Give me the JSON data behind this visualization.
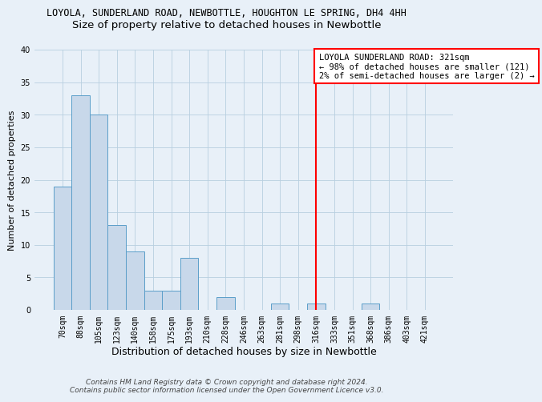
{
  "title_line1": "LOYOLA, SUNDERLAND ROAD, NEWBOTTLE, HOUGHTON LE SPRING, DH4 4HH",
  "title_line2": "Size of property relative to detached houses in Newbottle",
  "xlabel": "Distribution of detached houses by size in Newbottle",
  "ylabel": "Number of detached properties",
  "categories": [
    "70sqm",
    "88sqm",
    "105sqm",
    "123sqm",
    "140sqm",
    "158sqm",
    "175sqm",
    "193sqm",
    "210sqm",
    "228sqm",
    "246sqm",
    "263sqm",
    "281sqm",
    "298sqm",
    "316sqm",
    "333sqm",
    "351sqm",
    "368sqm",
    "386sqm",
    "403sqm",
    "421sqm"
  ],
  "values": [
    19,
    33,
    30,
    13,
    9,
    3,
    3,
    8,
    0,
    2,
    0,
    0,
    1,
    0,
    1,
    0,
    0,
    1,
    0,
    0,
    0
  ],
  "bar_color": "#c8d8ea",
  "bar_edge_color": "#5b9ec9",
  "grid_color": "#b8cfe0",
  "bg_color": "#e8f0f8",
  "vline_x_index": 14,
  "vline_color": "red",
  "annotation_text": "LOYOLA SUNDERLAND ROAD: 321sqm\n← 98% of detached houses are smaller (121)\n2% of semi-detached houses are larger (2) →",
  "annotation_box_color": "white",
  "annotation_border_color": "red",
  "ylim": [
    0,
    40
  ],
  "yticks": [
    0,
    5,
    10,
    15,
    20,
    25,
    30,
    35,
    40
  ],
  "footer_line1": "Contains HM Land Registry data © Crown copyright and database right 2024.",
  "footer_line2": "Contains public sector information licensed under the Open Government Licence v3.0.",
  "title1_fontsize": 8.5,
  "title2_fontsize": 9.5,
  "xlabel_fontsize": 9,
  "ylabel_fontsize": 8,
  "tick_fontsize": 7,
  "annotation_fontsize": 7.5,
  "footer_fontsize": 6.5
}
